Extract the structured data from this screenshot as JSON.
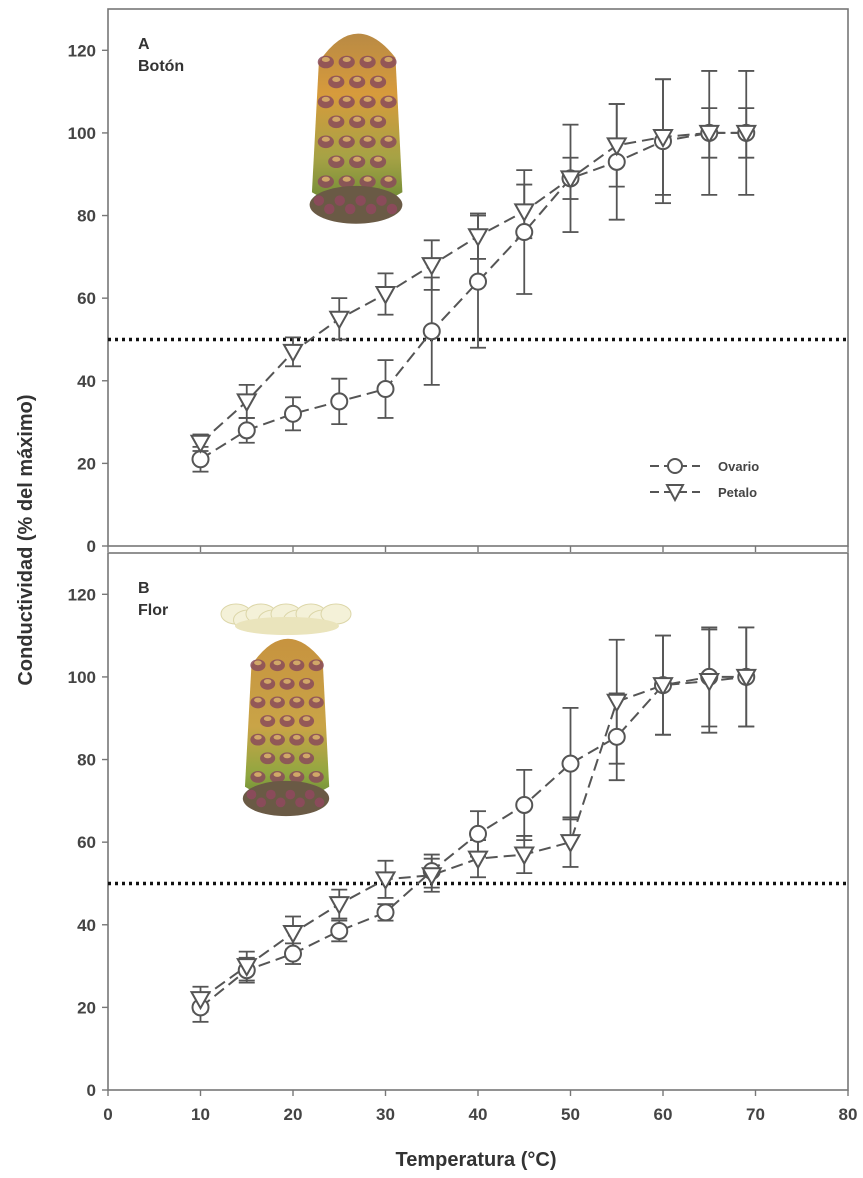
{
  "chart_data": [
    {
      "type": "line",
      "panel_letter": "A",
      "panel_title": "Botón",
      "image_label": "flower-bud-image",
      "xlabel": "Temperatura (°C)",
      "ylabel": "Conductividad (% del máximo)",
      "xlim": [
        0,
        80
      ],
      "ylim": [
        0,
        130
      ],
      "x_ticks": [
        "0",
        "10",
        "20",
        "30",
        "40",
        "50",
        "60",
        "70",
        "80"
      ],
      "y_ticks": [
        "0",
        "20",
        "40",
        "60",
        "80",
        "100",
        "120"
      ],
      "reference_line": 50,
      "grid": false,
      "legend_position": "bottom-right",
      "series": [
        {
          "name": "Ovario",
          "marker": "circle",
          "x": [
            10,
            15,
            20,
            25,
            30,
            35,
            40,
            45,
            50,
            55,
            60,
            65,
            69
          ],
          "y": [
            21,
            28,
            32,
            35,
            38,
            52,
            64,
            76,
            89,
            93,
            98,
            100,
            100
          ],
          "err": [
            3,
            3,
            4,
            5.5,
            7,
            13,
            16,
            15,
            13,
            14,
            15,
            15,
            15
          ]
        },
        {
          "name": "Petalo",
          "marker": "triangle-down",
          "x": [
            10,
            15,
            20,
            25,
            30,
            35,
            40,
            45,
            50,
            55,
            60,
            65,
            69
          ],
          "y": [
            25,
            35,
            47,
            55,
            61,
            68,
            75,
            81,
            89,
            97,
            99,
            100,
            100
          ],
          "err": [
            2,
            4,
            3.5,
            5,
            5,
            6,
            5.5,
            6.5,
            5,
            10,
            14,
            6,
            6
          ]
        }
      ]
    },
    {
      "type": "line",
      "panel_letter": "B",
      "panel_title": "Flor",
      "image_label": "open-flower-image",
      "xlabel": "Temperatura (°C)",
      "ylabel": "Conductividad (% del máximo)",
      "xlim": [
        0,
        80
      ],
      "ylim": [
        0,
        130
      ],
      "x_ticks": [
        "0",
        "10",
        "20",
        "30",
        "40",
        "50",
        "60",
        "70",
        "80"
      ],
      "y_ticks": [
        "0",
        "20",
        "40",
        "60",
        "80",
        "100",
        "120"
      ],
      "reference_line": 50,
      "grid": false,
      "legend_position": "none",
      "series": [
        {
          "name": "Ovario",
          "marker": "circle",
          "x": [
            10,
            15,
            20,
            25,
            30,
            35,
            40,
            45,
            50,
            55,
            60,
            65,
            69
          ],
          "y": [
            20,
            29,
            33,
            38.5,
            43,
            53,
            62,
            69,
            79,
            85.5,
            98,
            100,
            100
          ],
          "err": [
            3.5,
            3,
            2.5,
            2.5,
            2,
            4,
            5.5,
            8.5,
            13.5,
            10.5,
            12,
            12,
            12
          ]
        },
        {
          "name": "Petalo",
          "marker": "triangle-down",
          "x": [
            10,
            15,
            20,
            25,
            30,
            35,
            40,
            45,
            50,
            55,
            60,
            65,
            69
          ],
          "y": [
            22,
            30,
            38,
            45,
            51,
            52,
            56,
            57,
            60,
            94,
            98,
            99,
            100
          ],
          "err": [
            3,
            3.5,
            4,
            3.5,
            4.5,
            4,
            4.5,
            4.5,
            6,
            15,
            12,
            12.5,
            12
          ]
        }
      ]
    }
  ],
  "colors": {
    "line": "#555555",
    "frame": "#777777",
    "reference_line": "#111111",
    "marker_fill": "#ffffff",
    "bud_body": "#c98a3a",
    "bud_base": "#5d7a2f",
    "petals": "#f4f1d8"
  }
}
